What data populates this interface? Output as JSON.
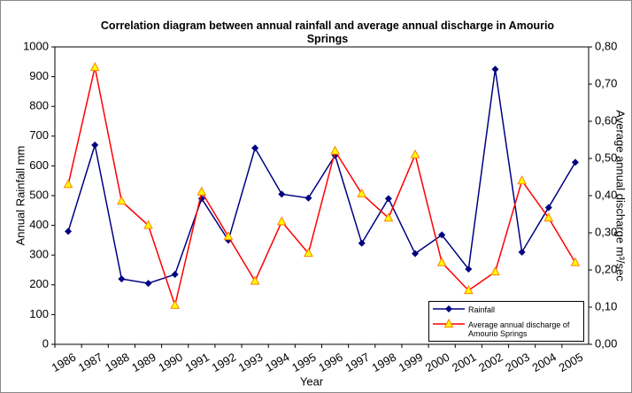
{
  "chart_data": {
    "type": "line",
    "title": "Correlation diagram  between annual rainfall  and average annual discharge in Amourio Springs",
    "x_label": "Year",
    "y_label": "Annual Rainfall mm",
    "y2_label": "Average annual discharge m³/sec",
    "categories": [
      "1986",
      "1987",
      "1988",
      "1989",
      "1990",
      "1991",
      "1992",
      "1993",
      "1994",
      "1995",
      "1996",
      "1997",
      "1998",
      "1999",
      "2000",
      "2001",
      "2002",
      "2003",
      "2004",
      "2005"
    ],
    "series": [
      {
        "name": "Rainfall",
        "color": "#000080",
        "values": [
          380,
          670,
          220,
          205,
          235,
          490,
          350,
          660,
          505,
          492,
          635,
          340,
          490,
          305,
          368,
          253,
          925,
          310,
          460,
          612
        ]
      },
      {
        "name": "Average annual discharge of Amourio Springs",
        "color": "#ff0000",
        "marker_color": "#ffff00",
        "axis": "y2",
        "values": [
          0.43,
          0.745,
          0.385,
          0.32,
          0.105,
          0.41,
          0.29,
          0.17,
          0.33,
          0.245,
          0.52,
          0.405,
          0.34,
          0.51,
          0.22,
          0.145,
          0.195,
          0.44,
          0.34,
          0.22
        ]
      }
    ],
    "ylim": [
      0,
      1000
    ],
    "yticks": [
      0,
      100,
      200,
      300,
      400,
      500,
      600,
      700,
      800,
      900,
      1000
    ],
    "y2lim": [
      0,
      0.8
    ],
    "y2ticks": [
      {
        "value": 0,
        "label": "0,00"
      },
      {
        "value": 0.1,
        "label": "0,10"
      },
      {
        "value": 0.2,
        "label": "0,20"
      },
      {
        "value": 0.3,
        "label": "0,30"
      },
      {
        "value": 0.4,
        "label": "0,40"
      },
      {
        "value": 0.5,
        "label": "0,50"
      },
      {
        "value": 0.6,
        "label": "0,60"
      },
      {
        "value": 0.7,
        "label": "0,70"
      },
      {
        "value": 0.8,
        "label": "0,80"
      }
    ],
    "legend": "lower right"
  }
}
